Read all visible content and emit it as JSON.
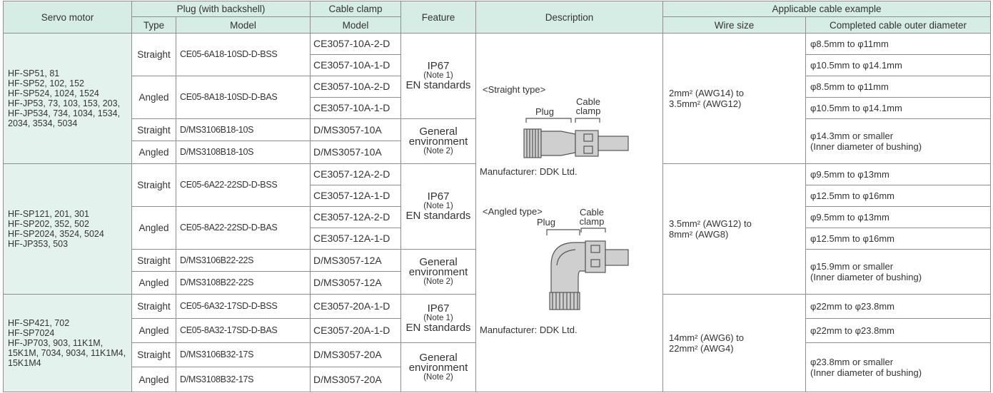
{
  "header": {
    "servo_motor": "Servo motor",
    "plug": "Plug (with backshell)",
    "type": "Type",
    "plug_model": "Model",
    "cable_clamp": "Cable clamp",
    "clamp_model": "Model",
    "feature": "Feature",
    "description": "Description",
    "cable_example": "Applicable cable example",
    "wire_size": "Wire size",
    "outer_diameter": "Completed cable outer diameter"
  },
  "groups": [
    {
      "servo_motor": [
        "HF-SP51, 81",
        "HF-SP52, 102, 152",
        "HF-SP524, 1024, 1524",
        "HF-JP53, 73, 103, 153, 203,",
        "HF-JP534, 734, 1034, 1534, 2034, 3534, 5034"
      ],
      "wire_size": [
        "2mm² (AWG14) to",
        "3.5mm² (AWG12)"
      ],
      "features": [
        {
          "label": [
            "IP67",
            "(Note 1)",
            "EN standards"
          ],
          "plugs": [
            {
              "type": "Straight",
              "model": "CE05-6A18-10SD-D-BSS",
              "clamps": [
                "CE3057-10A-2-D",
                "CE3057-10A-1-D"
              ]
            },
            {
              "type": "Angled",
              "model": "CE05-8A18-10SD-D-BAS",
              "clamps": [
                "CE3057-10A-2-D",
                "CE3057-10A-1-D"
              ]
            }
          ],
          "diameters": [
            [
              "φ8.5mm to φ11mm"
            ],
            [
              "φ10.5mm to φ14.1mm"
            ],
            [
              "φ8.5mm to φ11mm"
            ],
            [
              "φ10.5mm to φ14.1mm"
            ]
          ]
        },
        {
          "label": [
            "General",
            "environment",
            "(Note 2)"
          ],
          "plugs": [
            {
              "type": "Straight",
              "model": "D/MS3106B18-10S",
              "clamps": [
                "D/MS3057-10A"
              ]
            },
            {
              "type": "Angled",
              "model": "D/MS3108B18-10S",
              "clamps": [
                "D/MS3057-10A"
              ]
            }
          ],
          "diameters": [
            [
              "φ14.3mm or smaller",
              "(Inner diameter of bushing)"
            ]
          ]
        }
      ]
    },
    {
      "servo_motor": [
        "HF-SP121, 201, 301",
        "HF-SP202, 352, 502",
        "HF-SP2024, 3524, 5024",
        "HF-JP353, 503"
      ],
      "wire_size": [
        "3.5mm² (AWG12) to",
        "8mm² (AWG8)"
      ],
      "features": [
        {
          "label": [
            "IP67",
            "(Note 1)",
            "EN standards"
          ],
          "plugs": [
            {
              "type": "Straight",
              "model": "CE05-6A22-22SD-D-BSS",
              "clamps": [
                "CE3057-12A-2-D",
                "CE3057-12A-1-D"
              ]
            },
            {
              "type": "Angled",
              "model": "CE05-8A22-22SD-D-BAS",
              "clamps": [
                "CE3057-12A-2-D",
                "CE3057-12A-1-D"
              ]
            }
          ],
          "diameters": [
            [
              "φ9.5mm to φ13mm"
            ],
            [
              "φ12.5mm to φ16mm"
            ],
            [
              "φ9.5mm to φ13mm"
            ],
            [
              "φ12.5mm to φ16mm"
            ]
          ]
        },
        {
          "label": [
            "General",
            "environment",
            "(Note 2)"
          ],
          "plugs": [
            {
              "type": "Straight",
              "model": "D/MS3106B22-22S",
              "clamps": [
                "D/MS3057-12A"
              ]
            },
            {
              "type": "Angled",
              "model": "D/MS3108B22-22S",
              "clamps": [
                "D/MS3057-12A"
              ]
            }
          ],
          "diameters": [
            [
              "φ15.9mm or smaller",
              "(Inner diameter of bushing)"
            ]
          ]
        }
      ]
    },
    {
      "servo_motor": [
        "HF-SP421, 702",
        "HF-SP7024",
        "HF-JP703, 903, 11K1M, 15K1M, 7034, 9034, 11K1M4, 15K1M4"
      ],
      "wire_size": [
        "14mm² (AWG6) to",
        "22mm² (AWG4)"
      ],
      "features": [
        {
          "label": [
            "IP67",
            "(Note 1)",
            "EN standards"
          ],
          "plugs": [
            {
              "type": "Straight",
              "model": "CE05-6A32-17SD-D-BSS",
              "clamps": [
                "CE3057-20A-1-D"
              ]
            },
            {
              "type": "Angled",
              "model": "CE05-8A32-17SD-D-BAS",
              "clamps": [
                "CE3057-20A-1-D"
              ]
            }
          ],
          "diameters": [
            [
              "φ22mm to φ23.8mm"
            ],
            [
              "φ22mm to φ23.8mm"
            ]
          ]
        },
        {
          "label": [
            "General",
            "environment",
            "(Note 2)"
          ],
          "plugs": [
            {
              "type": "Straight",
              "model": "D/MS3106B32-17S",
              "clamps": [
                "D/MS3057-20A"
              ]
            },
            {
              "type": "Angled",
              "model": "D/MS3108B32-17S",
              "clamps": [
                "D/MS3057-20A"
              ]
            }
          ],
          "diameters": [
            [
              "φ23.8mm or smaller",
              "(Inner diameter of bushing)"
            ]
          ]
        }
      ]
    }
  ],
  "description": {
    "straight": {
      "title": "<Straight type>",
      "plug": "Plug",
      "clamp": "Cable clamp",
      "manufacturer": "Manufacturer: DDK Ltd."
    },
    "angled": {
      "title": "<Angled type>",
      "plug": "Plug",
      "clamp": "Cable clamp",
      "manufacturer": "Manufacturer: DDK Ltd."
    }
  }
}
